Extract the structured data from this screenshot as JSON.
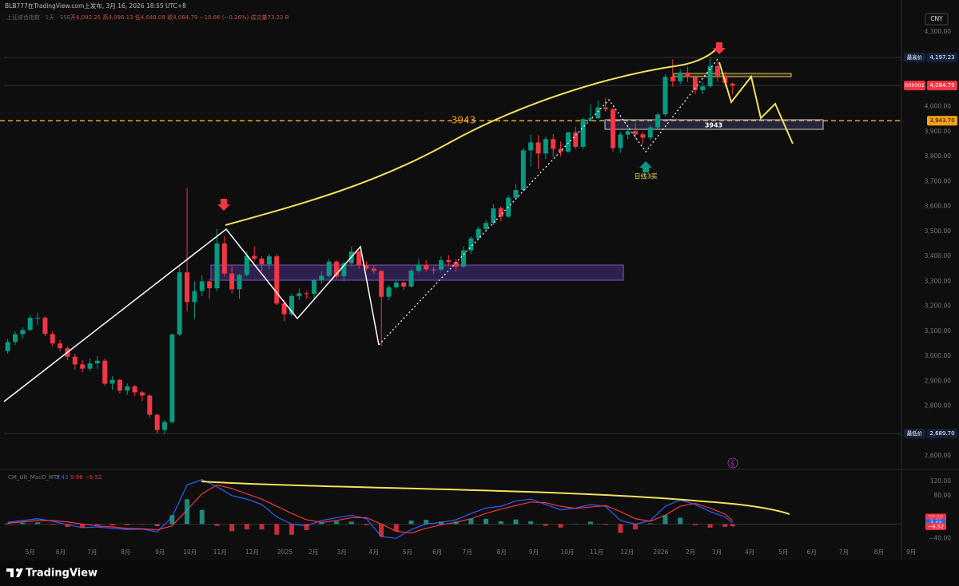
{
  "header": {
    "published": "BLB777在TradingView.com上发布, 3月 16, 2026 18:55 UTC+8",
    "symbol": "上证综合指数 · 1天 · SSE",
    "ohlc_text": "开4,092.25 高4,096.13 低4,048.09 收4,084.79 −10.66 (−0.26%) 成交量73.22 B",
    "currency": "CNY"
  },
  "branding": "TradingView",
  "chart_data": {
    "type": "candlestick",
    "up_color": "#089981",
    "down_color": "#f23645",
    "grid": false,
    "xlim": [
      0,
      122
    ],
    "ylim": [
      2546,
      4370
    ],
    "yticks": [
      {
        "value": 4300,
        "label": "4,300.00"
      },
      {
        "value": 4000,
        "label": "4,000.00"
      },
      {
        "value": 3900,
        "label": "3,900.00"
      },
      {
        "value": 3800,
        "label": "3,800.00"
      },
      {
        "value": 3700,
        "label": "3,700.00"
      },
      {
        "value": 3600,
        "label": "3,600.00"
      },
      {
        "value": 3500,
        "label": "3,500.00"
      },
      {
        "value": 3400,
        "label": "3,400.00"
      },
      {
        "value": 3300,
        "label": "3,300.00"
      },
      {
        "value": 3200,
        "label": "3,200.00"
      },
      {
        "value": 3100,
        "label": "3,100.00"
      },
      {
        "value": 3000,
        "label": "3,000.00"
      },
      {
        "value": 2900,
        "label": "2,900.00"
      },
      {
        "value": 2800,
        "label": "2,800.00"
      },
      {
        "value": 2600,
        "label": "2,600.00"
      }
    ],
    "xticks": [
      {
        "value": 3.5,
        "label": "5月"
      },
      {
        "value": 7.6,
        "label": "6月"
      },
      {
        "value": 11.8,
        "label": "7月"
      },
      {
        "value": 16.3,
        "label": "8月"
      },
      {
        "value": 20.9,
        "label": "9月"
      },
      {
        "value": 24.9,
        "label": "10月"
      },
      {
        "value": 28.9,
        "label": "11月"
      },
      {
        "value": 33.2,
        "label": "12月"
      },
      {
        "value": 37.6,
        "label": "2025"
      },
      {
        "value": 41.4,
        "label": "2月"
      },
      {
        "value": 45.2,
        "label": "3月"
      },
      {
        "value": 49.5,
        "label": "4月"
      },
      {
        "value": 54,
        "label": "5月"
      },
      {
        "value": 58,
        "label": "6月"
      },
      {
        "value": 62,
        "label": "7月"
      },
      {
        "value": 66.6,
        "label": "8月"
      },
      {
        "value": 70.9,
        "label": "9月"
      },
      {
        "value": 75.4,
        "label": "10月"
      },
      {
        "value": 79.3,
        "label": "11月"
      },
      {
        "value": 83.4,
        "label": "12月"
      },
      {
        "value": 87.9,
        "label": "2026"
      },
      {
        "value": 91.9,
        "label": "2月"
      },
      {
        "value": 95.4,
        "label": "3月"
      },
      {
        "value": 99.8,
        "label": "4月"
      },
      {
        "value": 104.3,
        "label": "5月"
      },
      {
        "value": 108.1,
        "label": "6月"
      },
      {
        "value": 112.4,
        "label": "7月"
      },
      {
        "value": 117.1,
        "label": "8月"
      },
      {
        "value": 121.4,
        "label": "9月"
      }
    ],
    "values": [
      [
        3020,
        3070,
        3010,
        3057
      ],
      [
        3057,
        3100,
        3045,
        3088
      ],
      [
        3088,
        3115,
        3070,
        3105
      ],
      [
        3105,
        3165,
        3100,
        3154
      ],
      [
        3154,
        3174,
        3125,
        3154
      ],
      [
        3154,
        3160,
        3080,
        3089
      ],
      [
        3089,
        3100,
        3040,
        3051
      ],
      [
        3051,
        3065,
        3020,
        3032
      ],
      [
        3032,
        3040,
        2985,
        2998
      ],
      [
        2998,
        3010,
        2945,
        2967
      ],
      [
        2967,
        2985,
        2935,
        2950
      ],
      [
        2950,
        2990,
        2940,
        2971
      ],
      [
        2971,
        3000,
        2950,
        2982
      ],
      [
        2982,
        2990,
        2880,
        2890
      ],
      [
        2890,
        2920,
        2865,
        2905
      ],
      [
        2905,
        2910,
        2850,
        2862
      ],
      [
        2862,
        2890,
        2845,
        2879
      ],
      [
        2879,
        2885,
        2840,
        2855
      ],
      [
        2855,
        2860,
        2820,
        2842
      ],
      [
        2842,
        2848,
        2755,
        2765
      ],
      [
        2765,
        2770,
        2690,
        2704
      ],
      [
        2704,
        2745,
        2689.7,
        2736
      ],
      [
        2736,
        3090,
        2730,
        3087
      ],
      [
        3087,
        3358,
        3080,
        3336
      ],
      [
        3336,
        3674,
        3180,
        3217
      ],
      [
        3217,
        3300,
        3150,
        3261
      ],
      [
        3261,
        3325,
        3240,
        3300
      ],
      [
        3300,
        3310,
        3230,
        3272
      ],
      [
        3272,
        3510,
        3260,
        3452
      ],
      [
        3452,
        3480,
        3320,
        3331
      ],
      [
        3331,
        3360,
        3250,
        3268
      ],
      [
        3268,
        3330,
        3230,
        3326
      ],
      [
        3326,
        3420,
        3320,
        3402
      ],
      [
        3402,
        3440,
        3380,
        3391
      ],
      [
        3391,
        3400,
        3340,
        3368
      ],
      [
        3368,
        3410,
        3350,
        3400
      ],
      [
        3400,
        3410,
        3205,
        3211
      ],
      [
        3211,
        3225,
        3140,
        3168
      ],
      [
        3168,
        3250,
        3160,
        3241
      ],
      [
        3241,
        3270,
        3225,
        3252
      ],
      [
        3252,
        3262,
        3230,
        3250
      ],
      [
        3250,
        3310,
        3225,
        3303
      ],
      [
        3303,
        3340,
        3290,
        3322
      ],
      [
        3322,
        3390,
        3315,
        3379
      ],
      [
        3379,
        3385,
        3310,
        3320
      ],
      [
        3320,
        3380,
        3300,
        3372
      ],
      [
        3372,
        3440,
        3360,
        3419
      ],
      [
        3419,
        3425,
        3350,
        3364
      ],
      [
        3364,
        3380,
        3345,
        3351
      ],
      [
        3351,
        3365,
        3330,
        3342
      ],
      [
        3342,
        3345,
        3040,
        3238
      ],
      [
        3238,
        3285,
        3225,
        3276
      ],
      [
        3276,
        3305,
        3270,
        3295
      ],
      [
        3295,
        3300,
        3265,
        3279
      ],
      [
        3279,
        3350,
        3275,
        3342
      ],
      [
        3342,
        3390,
        3335,
        3367
      ],
      [
        3367,
        3385,
        3340,
        3348
      ],
      [
        3348,
        3360,
        3330,
        3347
      ],
      [
        3347,
        3400,
        3340,
        3385
      ],
      [
        3385,
        3405,
        3360,
        3377
      ],
      [
        3377,
        3390,
        3340,
        3359
      ],
      [
        3359,
        3440,
        3355,
        3424
      ],
      [
        3424,
        3480,
        3410,
        3472
      ],
      [
        3472,
        3520,
        3465,
        3510
      ],
      [
        3510,
        3545,
        3500,
        3534
      ],
      [
        3534,
        3610,
        3525,
        3593
      ],
      [
        3593,
        3600,
        3540,
        3559
      ],
      [
        3559,
        3645,
        3555,
        3635
      ],
      [
        3635,
        3690,
        3630,
        3666
      ],
      [
        3666,
        3835,
        3660,
        3825
      ],
      [
        3825,
        3888,
        3760,
        3857
      ],
      [
        3857,
        3885,
        3750,
        3812
      ],
      [
        3812,
        3880,
        3790,
        3870
      ],
      [
        3870,
        3890,
        3800,
        3831
      ],
      [
        3831,
        3860,
        3800,
        3820
      ],
      [
        3820,
        3900,
        3815,
        3897
      ],
      [
        3897,
        3920,
        3830,
        3839
      ],
      [
        3839,
        3955,
        3830,
        3950
      ],
      [
        3950,
        4010,
        3940,
        3954
      ],
      [
        3954,
        4025,
        3950,
        3997
      ],
      [
        3997,
        4034,
        3980,
        3990
      ],
      [
        3990,
        3995,
        3820,
        3834
      ],
      [
        3834,
        3900,
        3815,
        3888
      ],
      [
        3888,
        3920,
        3870,
        3902
      ],
      [
        3902,
        3935,
        3870,
        3889
      ],
      [
        3889,
        3900,
        3850,
        3876
      ],
      [
        3876,
        3925,
        3865,
        3917
      ],
      [
        3917,
        3975,
        3910,
        3969
      ],
      [
        3969,
        4130,
        3960,
        4120
      ],
      [
        4120,
        4190,
        4080,
        4102
      ],
      [
        4102,
        4150,
        4090,
        4137
      ],
      [
        4137,
        4160,
        4100,
        4118
      ],
      [
        4118,
        4125,
        4050,
        4066
      ],
      [
        4066,
        4100,
        4050,
        4082
      ],
      [
        4082,
        4197.23,
        4075,
        4163
      ],
      [
        4163,
        4180,
        4100,
        4124
      ],
      [
        4124,
        4140,
        4080,
        4095
      ],
      [
        4092.25,
        4096.13,
        4048.09,
        4084.79
      ]
    ],
    "price_markers": [
      {
        "tag": "最高价",
        "value": 4197.23,
        "label": "4,197.23",
        "color": "#16203d",
        "text_color": "#ffffff",
        "line": "solid"
      },
      {
        "tag": "000001",
        "value": 4084.79,
        "label": "4,084.79",
        "color": "#f23645",
        "text_color": "#ffffff",
        "line": "solid"
      },
      {
        "value": 3943.7,
        "label": "3,943.70",
        "color": "#f7a21b",
        "text_color": "#000000",
        "line": "dashed"
      },
      {
        "tag": "最低价",
        "value": 2689.7,
        "label": "2,689.70",
        "color": "#16203d",
        "text_color": "#ffffff",
        "line": "solid"
      }
    ],
    "annotations": [
      "3943",
      "3943",
      "日线3买"
    ],
    "macd": {
      "type": "macd",
      "title": "CM_Ult_MacD_MTF",
      "legend_values": [
        "3.43",
        "9.96",
        "−6.52"
      ],
      "ylim": [
        -64,
        149
      ],
      "yticks": [
        {
          "value": 120,
          "label": "120.00"
        },
        {
          "value": 80,
          "label": "80.00"
        },
        {
          "value": -40,
          "label": "−40.00"
        }
      ],
      "x": [
        0.5,
        2.5,
        4.5,
        6.5,
        8.5,
        10.5,
        12.5,
        14.5,
        16.5,
        18.5,
        20.5,
        22.5,
        24.5,
        26.5,
        28.5,
        30.5,
        32.5,
        34.5,
        36.5,
        38.5,
        40.5,
        42.5,
        44.5,
        46.5,
        48.5,
        50.5,
        52.5,
        54.5,
        56.5,
        58.5,
        60.5,
        62.5,
        64.5,
        66.5,
        68.5,
        70.5,
        72.5,
        74.5,
        76.5,
        78.5,
        80.5,
        82.5,
        84.5,
        86.5,
        88.5,
        90.5,
        92.5,
        94.5,
        96.5,
        97.5
      ],
      "hist_up_color": "#26a69a",
      "hist_down_color": "#f23645",
      "series": [
        {
          "color": "#2962ff",
          "values": [
            5,
            10,
            15,
            8,
            -2,
            -10,
            -8,
            -12,
            -15,
            -14,
            -22,
            20,
            110,
            125,
            105,
            80,
            70,
            55,
            20,
            0,
            -5,
            10,
            18,
            25,
            15,
            -35,
            -40,
            -15,
            0,
            5,
            12,
            30,
            45,
            50,
            65,
            70,
            55,
            40,
            45,
            55,
            50,
            10,
            0,
            10,
            50,
            68,
            55,
            35,
            20,
            3.43
          ]
        },
        {
          "color": "#f23645",
          "values": [
            3,
            6,
            10,
            10,
            6,
            0,
            -5,
            -8,
            -12,
            -13,
            -16,
            -5,
            40,
            85,
            110,
            100,
            85,
            70,
            50,
            30,
            12,
            5,
            10,
            18,
            18,
            0,
            -20,
            -25,
            -12,
            -2,
            5,
            15,
            30,
            42,
            52,
            62,
            60,
            50,
            44,
            48,
            52,
            35,
            15,
            8,
            25,
            50,
            58,
            45,
            28,
            9.96
          ]
        },
        {
          "type": "histogram",
          "values": [
            2,
            4,
            5,
            -2,
            -8,
            -10,
            -3,
            -4,
            -3,
            -1,
            -6,
            25,
            70,
            40,
            -5,
            -20,
            -15,
            -15,
            -30,
            -30,
            -17,
            5,
            8,
            7,
            -3,
            -35,
            -20,
            10,
            12,
            7,
            7,
            15,
            15,
            8,
            13,
            8,
            -5,
            -10,
            1,
            7,
            -2,
            -25,
            -15,
            2,
            25,
            18,
            -3,
            -10,
            -8,
            -6.52
          ]
        }
      ],
      "axis_labels": [
        {
          "value": 19.16,
          "color": "#f23645"
        },
        {
          "value": 9.96,
          "color": "#f23645"
        },
        {
          "value": 3.43,
          "color": "#2962ff"
        },
        {
          "value": -6.52,
          "label": "−6.52",
          "color": "#f23645"
        }
      ]
    }
  }
}
